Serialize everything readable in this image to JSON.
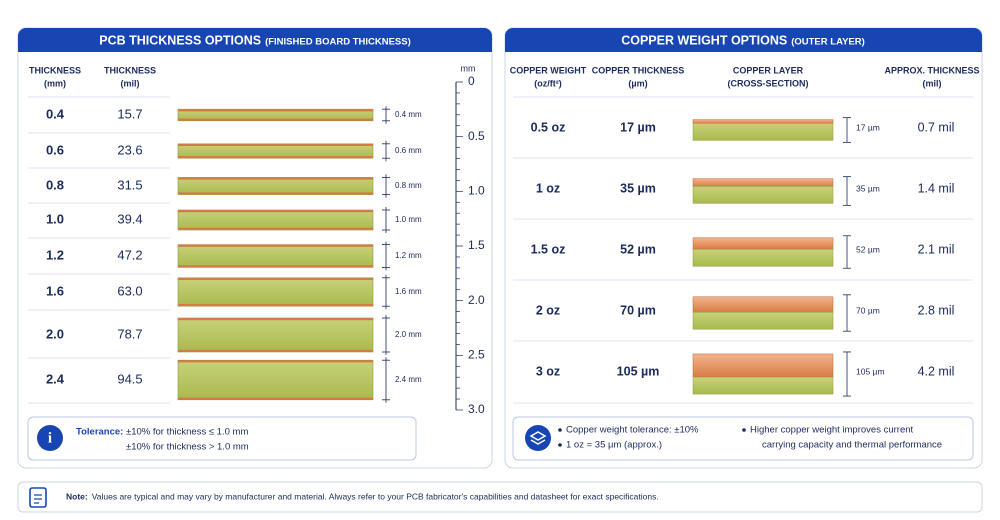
{
  "left": {
    "title": "PCB THICKNESS OPTIONS",
    "subtitle": "(FINISHED BOARD THICKNESS)",
    "headers": [
      [
        "THICKNESS",
        "(mm)"
      ],
      [
        "THICKNESS",
        "(mil)"
      ]
    ],
    "ruler_unit": "mm",
    "ruler_ticks": [
      "0",
      "0.5",
      "1.0",
      "1.5",
      "2.0",
      "2.5",
      "3.0"
    ],
    "rows": [
      {
        "mm": "0.4",
        "mil": "15.7",
        "label": "0.4 mm"
      },
      {
        "mm": "0.6",
        "mil": "23.6",
        "label": "0.6 mm"
      },
      {
        "mm": "0.8",
        "mil": "31.5",
        "label": "0.8 mm"
      },
      {
        "mm": "1.0",
        "mil": "39.4",
        "label": "1.0 mm"
      },
      {
        "mm": "1.2",
        "mil": "47.2",
        "label": "1.2 mm"
      },
      {
        "mm": "1.6",
        "mil": "63.0",
        "label": "1.6 mm"
      },
      {
        "mm": "2.0",
        "mil": "78.7",
        "label": "2.0 mm"
      },
      {
        "mm": "2.4",
        "mil": "94.5",
        "label": "2.4 mm"
      }
    ],
    "tolerance": {
      "label": "Tolerance:",
      "lines": [
        "±10% for thickness ≤ 1.0 mm",
        "±10% for thickness > 1.0 mm"
      ]
    }
  },
  "right": {
    "title": "COPPER WEIGHT OPTIONS",
    "subtitle": "(OUTER LAYER)",
    "headers": [
      [
        "COPPER WEIGHT",
        "(oz/ft²)"
      ],
      [
        "COPPER THICKNESS",
        "(µm)"
      ],
      [
        "COPPER LAYER",
        "(CROSS-SECTION)"
      ],
      [
        "APPROX. THICKNESS",
        "(mil)"
      ]
    ],
    "rows": [
      {
        "oz": "0.5 oz",
        "um": "17 µm",
        "label": "17 µm",
        "mil": "0.7 mil"
      },
      {
        "oz": "1 oz",
        "um": "35 µm",
        "label": "35 µm",
        "mil": "1.4 mil"
      },
      {
        "oz": "1.5 oz",
        "um": "52 µm",
        "label": "52 µm",
        "mil": "2.1 mil"
      },
      {
        "oz": "2 oz",
        "um": "70 µm",
        "label": "70 µm",
        "mil": "2.8 mil"
      },
      {
        "oz": "3 oz",
        "um": "105 µm",
        "label": "105 µm",
        "mil": "4.2 mil"
      }
    ],
    "info": [
      "Copper weight tolerance: ±10%",
      "1 oz = 35 µm (approx.)",
      "Higher copper weight improves current",
      "carrying capacity and thermal performance"
    ]
  },
  "note": {
    "label": "Note:",
    "text": "Values are typical and may vary by manufacturer and material. Always refer to your PCB fabricator's capabilities and datasheet for exact specifications."
  }
}
